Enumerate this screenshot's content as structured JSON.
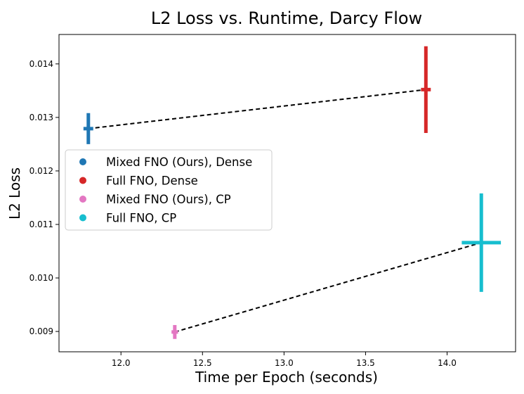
{
  "chart_data": {
    "type": "scatter",
    "title": "L2 Loss vs. Runtime, Darcy Flow",
    "xlabel": "Time per Epoch (seconds)",
    "ylabel": "L2 Loss",
    "xlim": [
      11.62,
      14.42
    ],
    "ylim": [
      0.00862,
      0.01455
    ],
    "xticks": [
      12.0,
      12.5,
      13.0,
      13.5,
      14.0
    ],
    "xtick_labels": [
      "12.0",
      "12.5",
      "13.0",
      "13.5",
      "14.0"
    ],
    "yticks": [
      0.009,
      0.01,
      0.011,
      0.012,
      0.013,
      0.014
    ],
    "ytick_labels": [
      "0.009",
      "0.010",
      "0.011",
      "0.012",
      "0.013",
      "0.014"
    ],
    "grid": false,
    "legend_position": "center-left",
    "series": [
      {
        "name": "Mixed FNO (Ours), Dense",
        "color": "#1f77b4",
        "x": 11.8,
        "y": 0.01279,
        "xerr": 0.03,
        "yerr": 0.00029
      },
      {
        "name": "Full FNO, Dense",
        "color": "#d62728",
        "x": 13.87,
        "y": 0.01352,
        "xerr": 0.03,
        "yerr": 0.00081
      },
      {
        "name": "Mixed FNO (Ours), CP",
        "color": "#e377c2",
        "x": 12.33,
        "y": 0.00899,
        "xerr": 0.02,
        "yerr": 0.00013
      },
      {
        "name": "Full FNO, CP",
        "color": "#17becf",
        "x": 14.21,
        "y": 0.01066,
        "xerr": 0.12,
        "yerr": 0.00092
      }
    ],
    "connectors": [
      {
        "from": 0,
        "to": 1,
        "style": "dashed",
        "color": "#000000"
      },
      {
        "from": 2,
        "to": 3,
        "style": "dashed",
        "color": "#000000"
      }
    ]
  }
}
